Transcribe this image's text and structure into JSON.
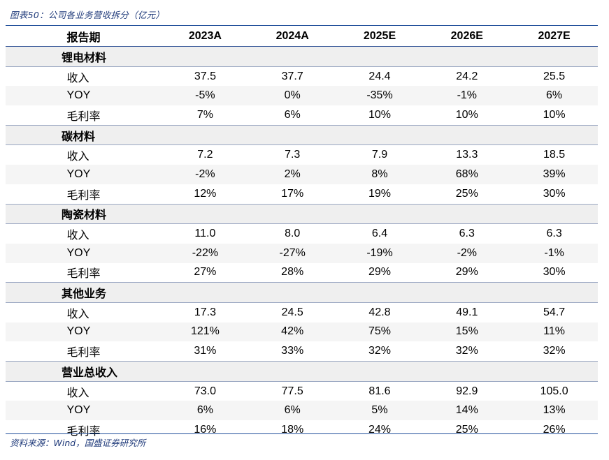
{
  "title": "图表50：公司各业务营收拆分（亿元）",
  "header": [
    "报告期",
    "2023A",
    "2024A",
    "2025E",
    "2026E",
    "2027E"
  ],
  "groups": [
    {
      "name": "锂电材料",
      "rows": [
        {
          "label": "收入",
          "values": [
            "37.5",
            "37.7",
            "24.4",
            "24.2",
            "25.5"
          ]
        },
        {
          "label": "YOY",
          "values": [
            "-5%",
            "0%",
            "-35%",
            "-1%",
            "6%"
          ]
        },
        {
          "label": "毛利率",
          "values": [
            "7%",
            "6%",
            "10%",
            "10%",
            "10%"
          ]
        }
      ]
    },
    {
      "name": "碳材料",
      "rows": [
        {
          "label": "收入",
          "values": [
            "7.2",
            "7.3",
            "7.9",
            "13.3",
            "18.5"
          ]
        },
        {
          "label": "YOY",
          "values": [
            "-2%",
            "2%",
            "8%",
            "68%",
            "39%"
          ]
        },
        {
          "label": "毛利率",
          "values": [
            "12%",
            "17%",
            "19%",
            "25%",
            "30%"
          ]
        }
      ]
    },
    {
      "name": "陶瓷材料",
      "rows": [
        {
          "label": "收入",
          "values": [
            "11.0",
            "8.0",
            "6.4",
            "6.3",
            "6.3"
          ]
        },
        {
          "label": "YOY",
          "values": [
            "-22%",
            "-27%",
            "-19%",
            "-2%",
            "-1%"
          ]
        },
        {
          "label": "毛利率",
          "values": [
            "27%",
            "28%",
            "29%",
            "29%",
            "30%"
          ]
        }
      ]
    },
    {
      "name": "其他业务",
      "rows": [
        {
          "label": "收入",
          "values": [
            "17.3",
            "24.5",
            "42.8",
            "49.1",
            "54.7"
          ]
        },
        {
          "label": "YOY",
          "values": [
            "121%",
            "42%",
            "75%",
            "15%",
            "11%"
          ]
        },
        {
          "label": "毛利率",
          "values": [
            "31%",
            "33%",
            "32%",
            "32%",
            "32%"
          ]
        }
      ]
    },
    {
      "name": "营业总收入",
      "rows": [
        {
          "label": "收入",
          "values": [
            "73.0",
            "77.5",
            "81.6",
            "92.9",
            "105.0"
          ]
        },
        {
          "label": "YOY",
          "values": [
            "6%",
            "6%",
            "5%",
            "14%",
            "13%"
          ]
        },
        {
          "label": "毛利率",
          "values": [
            "16%",
            "18%",
            "24%",
            "25%",
            "26%"
          ]
        }
      ]
    }
  ],
  "source": "资料来源：Wind，国盛证券研究所"
}
